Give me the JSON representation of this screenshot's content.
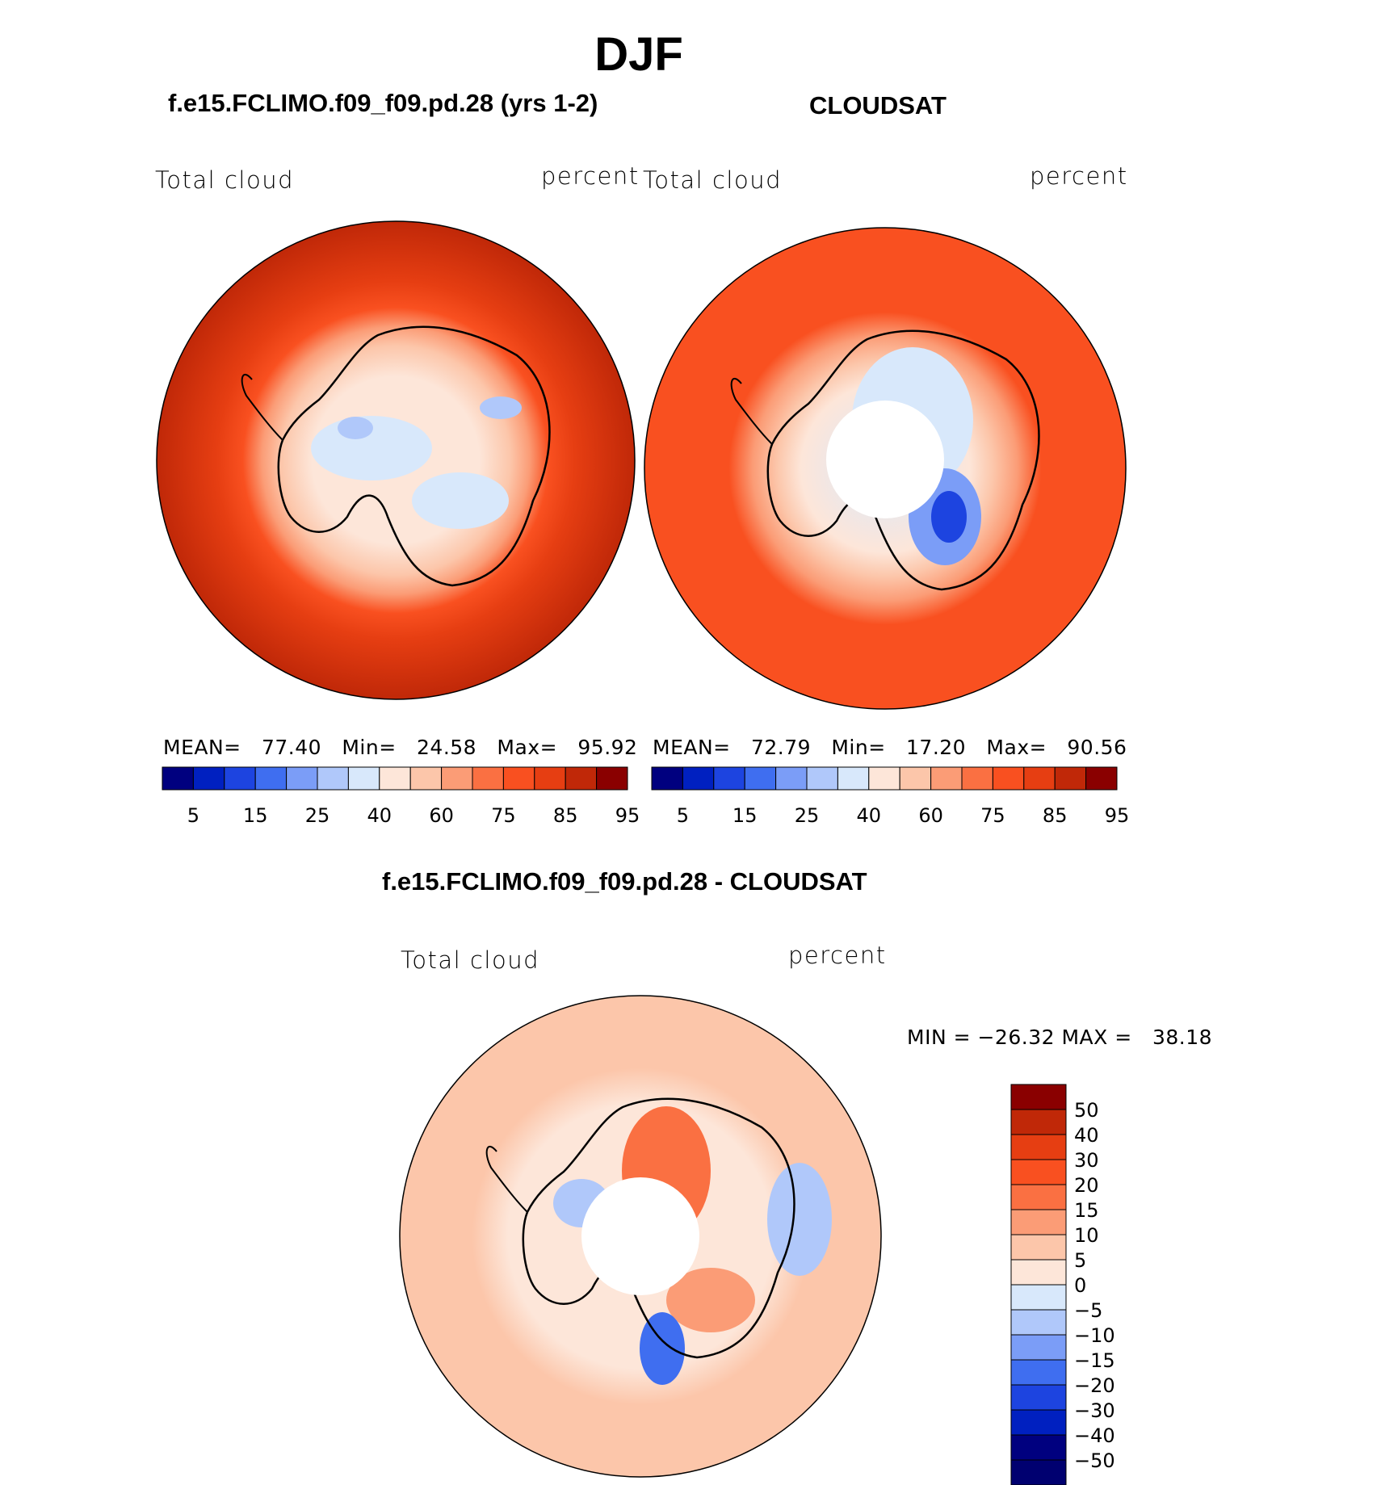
{
  "title": "DJF",
  "panels": [
    {
      "title": "f.e15.FCLIMO.f09_f09.pd.28 (yrs 1-2)",
      "left_label": "Total cloud",
      "right_label": "percent",
      "stats": "MEAN=   77.40   Min=   24.58   Max=   95.92"
    },
    {
      "title": "CLOUDSAT",
      "left_label": "Total cloud",
      "right_label": "percent",
      "stats": "MEAN=   72.79   Min=   17.20   Max=   90.56"
    }
  ],
  "diff_panel": {
    "title": "f.e15.FCLIMO.f09_f09.pd.28 - CLOUDSAT",
    "left_label": "Total cloud",
    "right_label": "percent",
    "stats": "MIN = −26.32 MAX =   38.18"
  },
  "chart_data": [
    {
      "type": "heatmap",
      "projection": "south-polar-stereographic",
      "title": "f.e15.FCLIMO.f09_f09.pd.28 (yrs 1-2)",
      "variable": "Total cloud",
      "units": "percent",
      "mean": 77.4,
      "min": 24.58,
      "max": 95.92,
      "colorbar": {
        "ticks": [
          "5",
          "15",
          "25",
          "40",
          "60",
          "75",
          "85",
          "95"
        ],
        "colors": [
          "#00007f",
          "#0020c0",
          "#1d44e0",
          "#3f6ef0",
          "#7b9df7",
          "#b0c8fa",
          "#d8e8fb",
          "#fde6d9",
          "#fcc6aa",
          "#fb9c76",
          "#fa7042",
          "#f95020",
          "#e63e12",
          "#c02808",
          "#8a0000"
        ]
      }
    },
    {
      "type": "heatmap",
      "projection": "south-polar-stereographic",
      "title": "CLOUDSAT",
      "variable": "Total cloud",
      "units": "percent",
      "mean": 72.79,
      "min": 17.2,
      "max": 90.56,
      "colorbar": {
        "ticks": [
          "5",
          "15",
          "25",
          "40",
          "60",
          "75",
          "85",
          "95"
        ],
        "colors": [
          "#00007f",
          "#0020c0",
          "#1d44e0",
          "#3f6ef0",
          "#7b9df7",
          "#b0c8fa",
          "#d8e8fb",
          "#fde6d9",
          "#fcc6aa",
          "#fb9c76",
          "#fa7042",
          "#f95020",
          "#e63e12",
          "#c02808",
          "#8a0000"
        ]
      }
    },
    {
      "type": "heatmap",
      "projection": "south-polar-stereographic",
      "title": "f.e15.FCLIMO.f09_f09.pd.28 - CLOUDSAT",
      "variable": "Total cloud",
      "units": "percent",
      "min": -26.32,
      "max": 38.18,
      "colorbar": {
        "ticks": [
          "50",
          "40",
          "30",
          "20",
          "15",
          "10",
          "5",
          "0",
          "−5",
          "−10",
          "−15",
          "−20",
          "−30",
          "−40",
          "−50"
        ],
        "colors": [
          "#8a0000",
          "#c02808",
          "#e63e12",
          "#f95020",
          "#fa7042",
          "#fb9c76",
          "#fcc6aa",
          "#fde6d9",
          "#d8e8fb",
          "#b0c8fa",
          "#7b9df7",
          "#3f6ef0",
          "#1d44e0",
          "#0020c0",
          "#00007f",
          "#000070"
        ]
      }
    }
  ]
}
